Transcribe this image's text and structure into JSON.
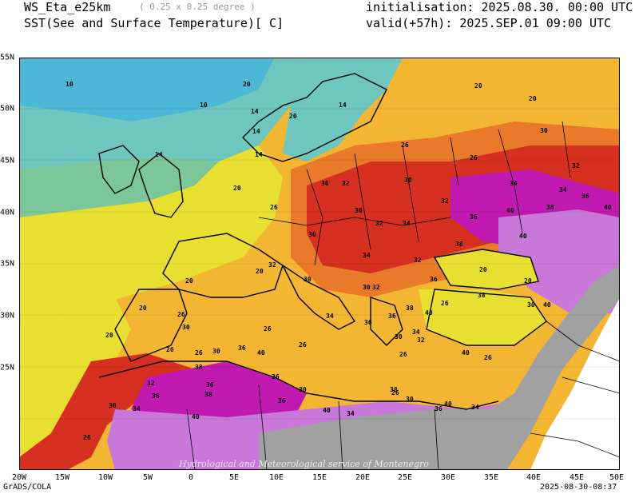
{
  "header": {
    "model": "WS_Eta_e25km",
    "resolution": "( 0.25 x 0.25 degree )",
    "variable": "SST(See and Surface Temperature)[ C]",
    "init": "initialisation: 2025.08.30. 00:00 UTC",
    "valid": "valid(+57h): 2025.SEP.01 09:00 UTC"
  },
  "map": {
    "watermark": "Hydrological and Meteorological service of Montenegro",
    "x_ticks": [
      "20W",
      "15W",
      "10W",
      "5W",
      "0",
      "5E",
      "10E",
      "15E",
      "20E",
      "25E",
      "30E",
      "35E",
      "40E",
      "45E",
      "50E"
    ],
    "y_ticks": [
      "55N",
      "50N",
      "45N",
      "40N",
      "35N",
      "30N",
      "25N"
    ],
    "contour_labels": [
      "10",
      "14",
      "20",
      "26",
      "30",
      "32",
      "34",
      "36",
      "38",
      "40"
    ],
    "colors": {
      "t10": "#4cb8d8",
      "t14": "#6ec6c0",
      "t17": "#7cc79a",
      "t20": "#e8e030",
      "t26": "#f2b632",
      "t30": "#e87a2a",
      "t32": "#d63020",
      "t34": "#c01ab0",
      "t38": "#c878d8",
      "masked": "#a0a0a0"
    }
  },
  "footer": {
    "left": "GrADS/COLA",
    "right": "2025-08-30-08:37"
  }
}
